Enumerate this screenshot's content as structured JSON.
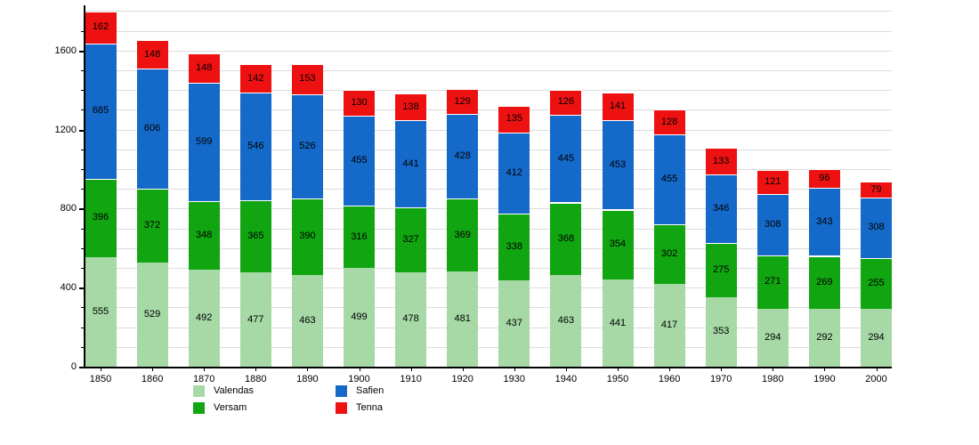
{
  "chart_data": {
    "type": "bar",
    "stacked": true,
    "title": "",
    "xlabel": "",
    "ylabel": "",
    "categories": [
      "1850",
      "1860",
      "1870",
      "1880",
      "1890",
      "1900",
      "1910",
      "1920",
      "1930",
      "1940",
      "1950",
      "1960",
      "1970",
      "1980",
      "1990",
      "2000"
    ],
    "series": [
      {
        "name": "Valendas",
        "color": "#a6d9a6",
        "values": [
          555,
          529,
          492,
          477,
          463,
          499,
          478,
          481,
          437,
          463,
          441,
          417,
          353,
          294,
          292,
          294
        ]
      },
      {
        "name": "Versam",
        "color": "#11a511",
        "values": [
          396,
          372,
          348,
          365,
          390,
          316,
          327,
          369,
          338,
          368,
          354,
          302,
          275,
          271,
          269,
          255
        ]
      },
      {
        "name": "Safien",
        "color": "#1569c9",
        "values": [
          685,
          606,
          599,
          546,
          526,
          455,
          441,
          428,
          412,
          445,
          453,
          455,
          346,
          308,
          343,
          308
        ]
      },
      {
        "name": "Tenna",
        "color": "#ee1111",
        "values": [
          162,
          148,
          148,
          142,
          153,
          130,
          138,
          129,
          135,
          126,
          141,
          128,
          133,
          121,
          96,
          79
        ]
      }
    ],
    "yticks": [
      "0",
      "400",
      "800",
      "1200",
      "1600"
    ],
    "ylim": [
      0,
      1800
    ],
    "ytick_interval": 400,
    "grid_interval": 100,
    "grid": true,
    "legend_position": "bottom",
    "legend_columns": [
      [
        "Valendas",
        "Versam"
      ],
      [
        "Safien",
        "Tenna"
      ]
    ],
    "value_labels_color": "#000000",
    "gridline_color": "#dcdcdc",
    "axis_color": "#000000"
  }
}
